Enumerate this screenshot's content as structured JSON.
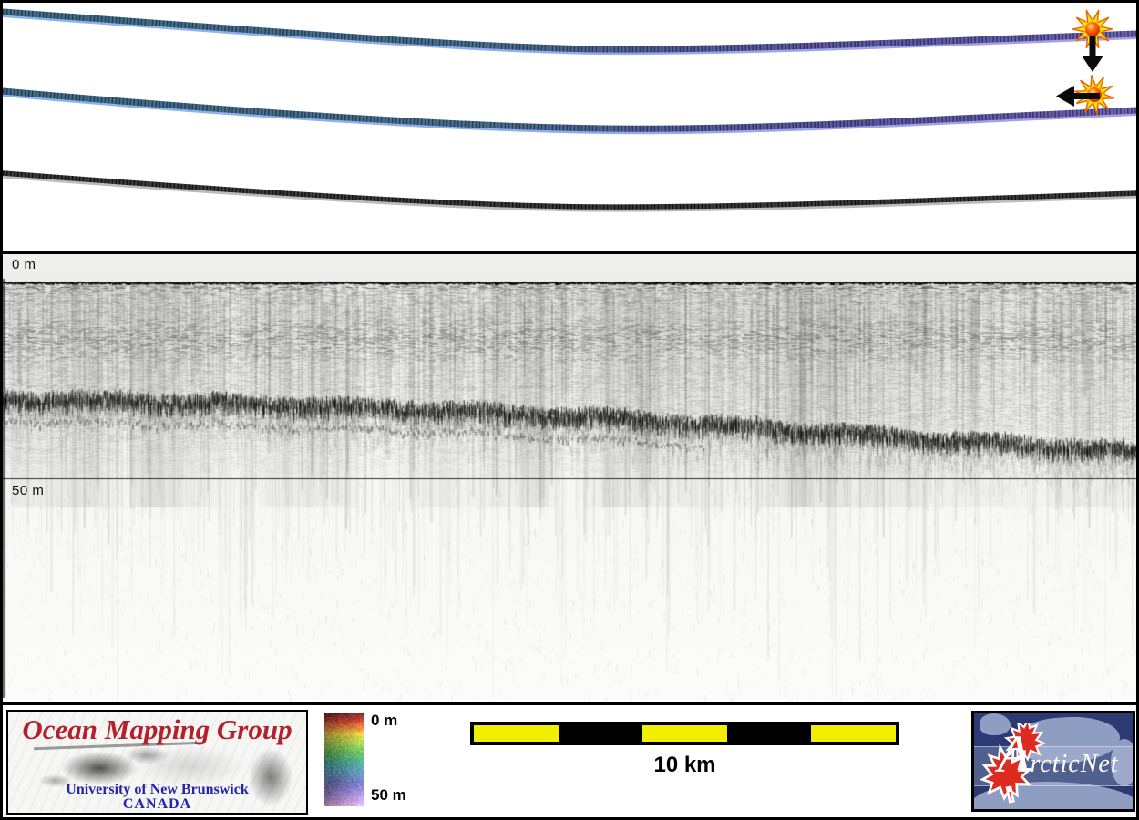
{
  "top_panel": {
    "line_colors": {
      "teal_left": "#3f6d88",
      "purple_right": "#6c63b2",
      "fringe_blue": "#74a8e4",
      "fringe_lavender": "#9a8ce2",
      "dark_line": "#3a3a3a"
    },
    "markers": [
      {
        "name": "burst-marker-1",
        "arrow_direction": "down"
      },
      {
        "name": "burst-marker-2",
        "arrow_direction": "left"
      }
    ],
    "burst_colors": {
      "outer": "#ffe212",
      "outline": "#e86400",
      "core": "#d62400"
    }
  },
  "profile": {
    "surface_label": "0 m",
    "depth_line_label": "50 m"
  },
  "footer": {
    "omg": {
      "title": "Ocean Mapping Group",
      "subtitle": "University of New Brunswick",
      "country": "CANADA",
      "title_color": "#b3212c",
      "text_color": "#2424a8"
    },
    "colorbar": {
      "top_label": "0 m",
      "bottom_label": "50 m",
      "stops": [
        [
          0.0,
          "#6b2424"
        ],
        [
          0.07,
          "#a93a2c"
        ],
        [
          0.14,
          "#c56a33"
        ],
        [
          0.22,
          "#c9b23e"
        ],
        [
          0.32,
          "#93b94c"
        ],
        [
          0.44,
          "#55a55c"
        ],
        [
          0.55,
          "#47948c"
        ],
        [
          0.66,
          "#5a7fa8"
        ],
        [
          0.76,
          "#6a6aaa"
        ],
        [
          0.86,
          "#8d7cbe"
        ],
        [
          0.94,
          "#b08cc8"
        ],
        [
          1.0,
          "#c9a2d4"
        ]
      ]
    },
    "scalebar": {
      "label": "10 km",
      "segment_count": 5,
      "yellow": "#f2ee00",
      "black": "#000000"
    },
    "arcticnet": {
      "text_cap": "A",
      "text_rest": "rcticNet",
      "bg": "#2b3a72",
      "land": "#8f9dc2",
      "leaf": "#dd2b1f"
    }
  },
  "chart_data": {
    "type": "heatmap",
    "description": "Sub-bottom acoustic echogram (depth vs along-track distance) with three colored track-elevation lines in the upper panel",
    "y_ticks": [
      "0 m",
      "50 m"
    ],
    "y_range_m": [
      0,
      105
    ],
    "scalebar_km": 10,
    "grid": false,
    "series": [
      {
        "name": "seafloor_depth_m",
        "x_frac": [
          0,
          0.2,
          0.4,
          0.6,
          0.8,
          1.0
        ],
        "values": [
          30,
          31,
          33,
          36,
          40,
          43.5
        ]
      }
    ]
  }
}
